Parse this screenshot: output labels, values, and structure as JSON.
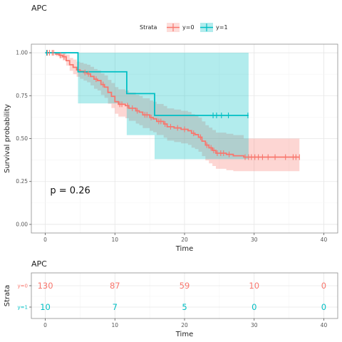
{
  "chart_data": [
    {
      "type": "line",
      "title": "APC",
      "xlabel": "Time",
      "ylabel": "Survival probability",
      "xlim": [
        -2,
        42
      ],
      "ylim": [
        -0.05,
        1.05
      ],
      "x_ticks": [
        0,
        10,
        20,
        30,
        40
      ],
      "y_ticks": [
        "0.00",
        "0.25",
        "0.50",
        "0.75",
        "1.00"
      ],
      "y_tick_values": [
        0,
        0.25,
        0.5,
        0.75,
        1.0
      ],
      "grid": true,
      "legend": {
        "title": "Strata",
        "placement": "top",
        "entries": [
          "y=0",
          "y=1"
        ]
      },
      "annotation": "p = 0.26",
      "series": [
        {
          "name": "y=0",
          "color": "#F8766D",
          "fill": "#F8766D",
          "steps": [
            [
              0,
              1.0
            ],
            [
              1.5,
              0.992
            ],
            [
              2.0,
              0.985
            ],
            [
              2.5,
              0.977
            ],
            [
              3.0,
              0.954
            ],
            [
              3.5,
              0.93
            ],
            [
              4.0,
              0.915
            ],
            [
              4.5,
              0.9
            ],
            [
              5.0,
              0.892
            ],
            [
              5.5,
              0.885
            ],
            [
              6.0,
              0.877
            ],
            [
              6.5,
              0.862
            ],
            [
              7.0,
              0.846
            ],
            [
              7.5,
              0.838
            ],
            [
              8.0,
              0.815
            ],
            [
              8.5,
              0.8
            ],
            [
              9.0,
              0.769
            ],
            [
              9.5,
              0.746
            ],
            [
              10.0,
              0.715
            ],
            [
              10.5,
              0.7
            ],
            [
              11.5,
              0.692
            ],
            [
              12.0,
              0.677
            ],
            [
              13.0,
              0.662
            ],
            [
              13.5,
              0.654
            ],
            [
              14.0,
              0.638
            ],
            [
              15.0,
              0.623
            ],
            [
              15.5,
              0.615
            ],
            [
              16.0,
              0.6
            ],
            [
              17.0,
              0.585
            ],
            [
              17.5,
              0.569
            ],
            [
              18.5,
              0.562
            ],
            [
              19.5,
              0.554
            ],
            [
              20.5,
              0.546
            ],
            [
              21.0,
              0.531
            ],
            [
              21.5,
              0.523
            ],
            [
              22.0,
              0.508
            ],
            [
              22.5,
              0.485
            ],
            [
              23.0,
              0.462
            ],
            [
              23.5,
              0.446
            ],
            [
              24.0,
              0.431
            ],
            [
              24.5,
              0.415
            ],
            [
              26.0,
              0.408
            ],
            [
              27.0,
              0.4
            ],
            [
              28.5,
              0.392
            ],
            [
              36.5,
              0.392
            ]
          ],
          "lower": [
            [
              0,
              1.0
            ],
            [
              1.5,
              0.98
            ],
            [
              2.0,
              0.968
            ],
            [
              2.5,
              0.955
            ],
            [
              3.0,
              0.925
            ],
            [
              3.5,
              0.895
            ],
            [
              4.0,
              0.875
            ],
            [
              4.5,
              0.86
            ],
            [
              5.0,
              0.848
            ],
            [
              5.5,
              0.838
            ],
            [
              6.0,
              0.828
            ],
            [
              6.5,
              0.81
            ],
            [
              7.0,
              0.79
            ],
            [
              7.5,
              0.78
            ],
            [
              8.0,
              0.754
            ],
            [
              8.5,
              0.737
            ],
            [
              9.0,
              0.703
            ],
            [
              9.5,
              0.678
            ],
            [
              10.0,
              0.645
            ],
            [
              10.5,
              0.628
            ],
            [
              11.5,
              0.619
            ],
            [
              12.0,
              0.603
            ],
            [
              13.0,
              0.587
            ],
            [
              13.5,
              0.578
            ],
            [
              14.0,
              0.561
            ],
            [
              15.0,
              0.545
            ],
            [
              15.5,
              0.537
            ],
            [
              16.0,
              0.521
            ],
            [
              17.0,
              0.505
            ],
            [
              17.5,
              0.488
            ],
            [
              18.5,
              0.48
            ],
            [
              19.5,
              0.472
            ],
            [
              20.5,
              0.463
            ],
            [
              21.0,
              0.447
            ],
            [
              21.5,
              0.439
            ],
            [
              22.0,
              0.423
            ],
            [
              22.5,
              0.398
            ],
            [
              23.0,
              0.373
            ],
            [
              23.5,
              0.356
            ],
            [
              24.0,
              0.34
            ],
            [
              24.5,
              0.324
            ],
            [
              26.0,
              0.316
            ],
            [
              27.0,
              0.31
            ],
            [
              28.5,
              0.31
            ],
            [
              36.5,
              0.31
            ]
          ],
          "upper": [
            [
              0,
              1.0
            ],
            [
              1.5,
              1.0
            ],
            [
              2.0,
              1.0
            ],
            [
              2.5,
              1.0
            ],
            [
              3.0,
              0.99
            ],
            [
              3.5,
              0.97
            ],
            [
              4.0,
              0.96
            ],
            [
              4.5,
              0.948
            ],
            [
              5.0,
              0.942
            ],
            [
              5.5,
              0.936
            ],
            [
              6.0,
              0.93
            ],
            [
              6.5,
              0.918
            ],
            [
              7.0,
              0.905
            ],
            [
              7.5,
              0.898
            ],
            [
              8.0,
              0.88
            ],
            [
              8.5,
              0.868
            ],
            [
              9.0,
              0.842
            ],
            [
              9.5,
              0.824
            ],
            [
              10.0,
              0.8
            ],
            [
              10.5,
              0.787
            ],
            [
              11.5,
              0.78
            ],
            [
              12.0,
              0.768
            ],
            [
              13.0,
              0.755
            ],
            [
              13.5,
              0.748
            ],
            [
              14.0,
              0.735
            ],
            [
              15.0,
              0.722
            ],
            [
              15.5,
              0.715
            ],
            [
              16.0,
              0.702
            ],
            [
              17.0,
              0.69
            ],
            [
              17.5,
              0.676
            ],
            [
              18.5,
              0.669
            ],
            [
              19.5,
              0.662
            ],
            [
              20.5,
              0.655
            ],
            [
              21.0,
              0.642
            ],
            [
              21.5,
              0.635
            ],
            [
              22.0,
              0.622
            ],
            [
              22.5,
              0.6
            ],
            [
              23.0,
              0.578
            ],
            [
              23.5,
              0.564
            ],
            [
              24.0,
              0.55
            ],
            [
              24.5,
              0.535
            ],
            [
              26.0,
              0.528
            ],
            [
              27.0,
              0.52
            ],
            [
              28.5,
              0.5
            ],
            [
              36.5,
              0.5
            ]
          ],
          "censor_x": [
            0.3,
            0.6,
            1.0,
            1.2,
            2.2,
            2.7,
            5.7,
            6.2,
            7.3,
            8.3,
            10.7,
            11.0,
            11.8,
            12.5,
            13.2,
            14.3,
            14.6,
            15.2,
            16.3,
            16.6,
            17.2,
            18.0,
            19.0,
            20.0,
            21.3,
            22.3,
            23.2,
            23.8,
            24.2,
            24.7,
            25.2,
            25.6,
            26.4,
            28.7,
            29.2,
            29.6,
            30.1,
            30.6,
            31.2,
            32.0,
            33.0,
            34.5,
            35.6,
            36.0,
            36.5
          ]
        },
        {
          "name": "y=1",
          "color": "#00BFC4",
          "fill": "#00BFC4",
          "steps": [
            [
              0,
              1.0
            ],
            [
              4.7,
              0.889
            ],
            [
              11.7,
              0.762
            ],
            [
              15.7,
              0.635
            ],
            [
              29.2,
              0.635
            ]
          ],
          "lower": [
            [
              0,
              1.0
            ],
            [
              4.7,
              0.705
            ],
            [
              11.7,
              0.52
            ],
            [
              15.7,
              0.38
            ],
            [
              29.2,
              0.38
            ]
          ],
          "upper": [
            [
              0,
              1.0
            ],
            [
              4.7,
              1.0
            ],
            [
              11.7,
              1.0
            ],
            [
              15.7,
              1.0
            ],
            [
              29.2,
              1.0
            ]
          ],
          "censor_x": [
            0.2,
            24.1,
            24.6,
            25.3,
            26.3,
            29.1
          ]
        }
      ]
    },
    {
      "type": "table",
      "title": "APC",
      "xlabel": "Time",
      "ylabel": "Strata",
      "xlim": [
        -2,
        42
      ],
      "x_ticks": [
        0,
        10,
        20,
        30,
        40
      ],
      "x": [
        0,
        10,
        20,
        30,
        40
      ],
      "rows": [
        {
          "name": "y=0",
          "color": "#F8766D",
          "values": [
            "130",
            "87",
            "59",
            "10",
            "0"
          ]
        },
        {
          "name": "y=1",
          "color": "#00BFC4",
          "values": [
            "10",
            "7",
            "5",
            "0",
            "0"
          ]
        }
      ]
    }
  ]
}
